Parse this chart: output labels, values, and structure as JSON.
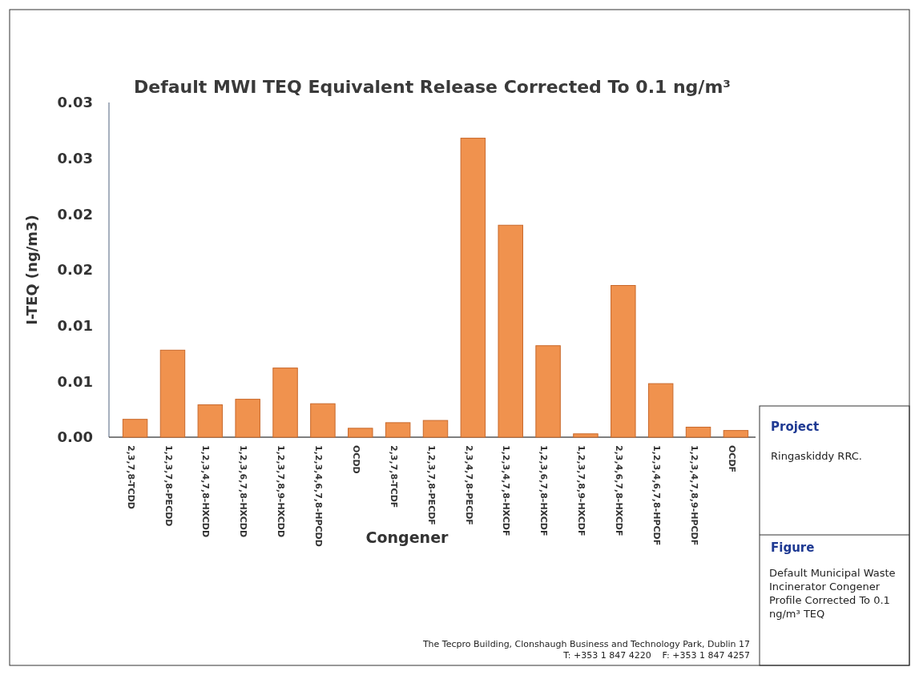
{
  "chart_data": {
    "type": "bar",
    "title": "Default MWI TEQ Equivalent Release Corrected To 0.1 ng/m³",
    "xlabel": "Congener",
    "ylabel": "I-TEQ (ng/m3)",
    "categories": [
      "2,3,7,8-TCDD",
      "1,2,3,7,8-PECDD",
      "1,2,3,4,7,8-HXCDD",
      "1,2,3,6,7,8-HXCDD",
      "1,2,3,7,8,9-HXCDD",
      "1,2,3,4,6,7,8-HPCDD",
      "OCDD",
      "2,3,7,8-TCDF",
      "1,2,3,7,8-PECDF",
      "2,3,4,7,8-PECDF",
      "1,2,3,4,7,8-HXCDF",
      "1,2,3,6,7,8-HXCDF",
      "1,2,3,7,8,9-HXCDF",
      "2,3,4,6,7,8-HXCDF",
      "1,2,3,4,6,7,8-HPCDF",
      "1,2,3,4,7,8,9-HPCDF",
      "OCDF"
    ],
    "values": [
      0.0016,
      0.0078,
      0.0029,
      0.0034,
      0.0062,
      0.003,
      0.0008,
      0.0013,
      0.0015,
      0.0268,
      0.019,
      0.0082,
      0.0003,
      0.0136,
      0.0048,
      0.0009,
      0.0006
    ],
    "color": "#f0924e",
    "ylim": [
      0,
      0.03
    ],
    "yticks": [
      {
        "value": 0,
        "label": "0.00"
      },
      {
        "value": 0.005,
        "label": "0.01"
      },
      {
        "value": 0.01,
        "label": "0.01"
      },
      {
        "value": 0.015,
        "label": "0.02"
      },
      {
        "value": 0.02,
        "label": "0.02"
      },
      {
        "value": 0.025,
        "label": "0.03"
      },
      {
        "value": 0.03,
        "label": "0.03"
      }
    ],
    "grid": false,
    "annotations": [
      "Project",
      "Ringaskiddy RRC.",
      "Figure",
      "Default Municipal Waste Incinerator Congener Profile Corrected To 0.1 ng/m³ TEQ",
      "The Tecpro Building, Clonshaugh Business and Technology Park, Dublin 17",
      "T: +353 1 847 4220    F: +353 1 847 4257"
    ]
  }
}
